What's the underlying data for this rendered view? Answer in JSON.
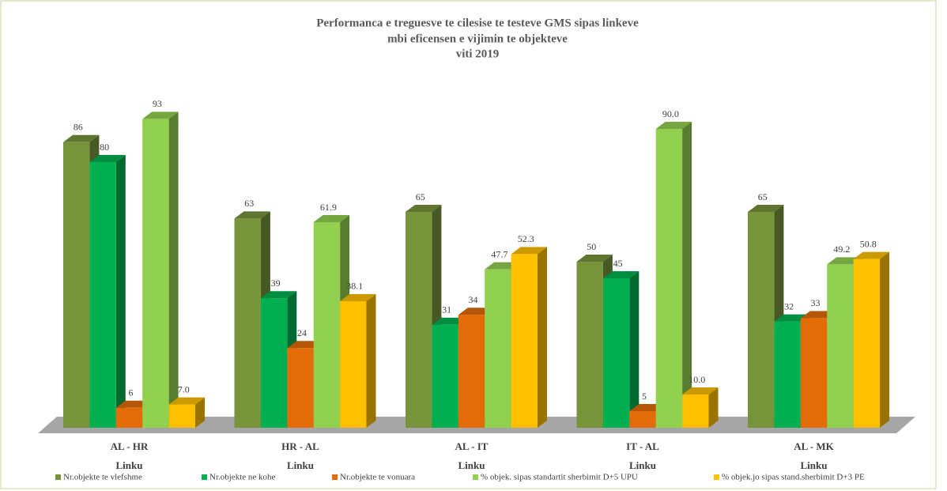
{
  "chart_data": {
    "type": "bar3d",
    "title": [
      "Performanca  e treguesve   te cilesise   te testeve  GMS   sipas linkeve",
      "mbi  eficensen e vijimin  te objekteve",
      "viti  2019"
    ],
    "x_label": "Linku",
    "categories": [
      "AL - HR",
      "HR - AL",
      "AL - IT",
      "IT - AL",
      "AL - MK"
    ],
    "series": [
      {
        "name": "Nr.objekte  te vlefshme",
        "color": "#77933c",
        "values": [
          86,
          63,
          65,
          50,
          65
        ]
      },
      {
        "name": "Nr.objekte  ne kohe",
        "color": "#00b050",
        "values": [
          80,
          39,
          31,
          45,
          32
        ]
      },
      {
        "name": "Nr.objekte  te vonuara",
        "color": "#e36c09",
        "values": [
          6,
          24,
          34,
          5,
          33
        ]
      },
      {
        "name": "% objek. sipas standartit sherbimit D+5 UPU",
        "color": "#92d050",
        "values": [
          93,
          61.9,
          47.7,
          90.0,
          49.2
        ],
        "value_labels": [
          "93",
          "61.9",
          "47.7",
          "90.0",
          "49.2"
        ]
      },
      {
        "name": "% objek.jo sipas stand.sherbimit D+3 PE",
        "color": "#ffc000",
        "values": [
          7.0,
          38.1,
          52.3,
          10.0,
          50.8
        ],
        "value_labels": [
          "7.0",
          "38.1",
          "52.3",
          "10.0",
          "50.8"
        ]
      }
    ],
    "legend": "bottom"
  }
}
